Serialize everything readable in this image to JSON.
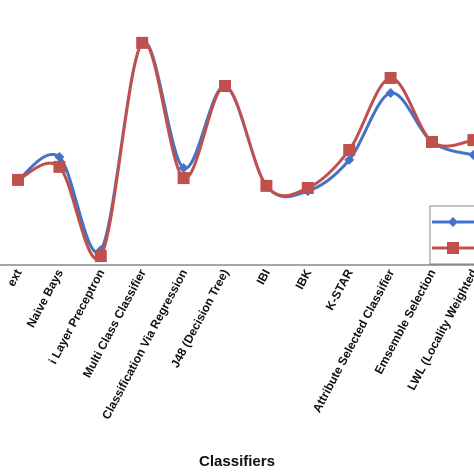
{
  "chart_data": {
    "type": "line",
    "x_label": "Classifiers",
    "categories": [
      "ext",
      "Naive Bays",
      "i Layer Preceptron",
      "Multi Class Classifier",
      "Classification Via Regression",
      "J48 (Decision Tree)",
      "IBI",
      "IBK",
      "K-STAR",
      "Attribute Selected Classifier",
      "Emsemble Selection",
      "LWL (Locality Weighted"
    ],
    "series": [
      {
        "color": "#4472c4",
        "marker": "diamond",
        "values": [
          38.5,
          47.3,
          11.5,
          91.2,
          43.1,
          74.6,
          36.2,
          34.2,
          46.2,
          71.9,
          53.1,
          48.1
        ]
      },
      {
        "color": "#c0504d",
        "marker": "square",
        "values": [
          38.5,
          43.5,
          9.2,
          91.2,
          39.2,
          74.6,
          36.2,
          35.4,
          50.0,
          77.7,
          53.1,
          53.8
        ]
      }
    ],
    "ylim": [
      0,
      100
    ]
  }
}
